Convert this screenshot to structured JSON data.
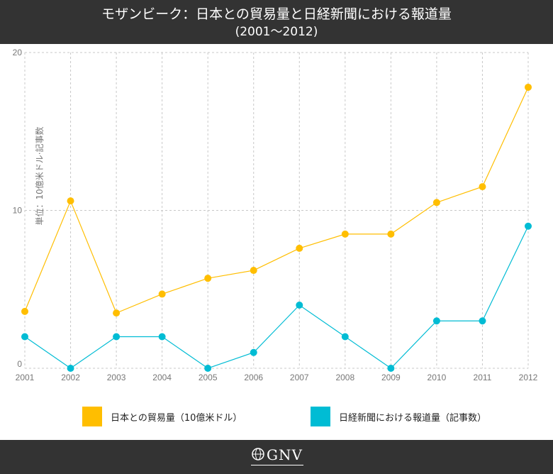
{
  "header": {
    "title_line1": "モザンビーク：日本との貿易量と日経新聞における報道量",
    "title_line2": "(2001～2012)"
  },
  "chart_data": {
    "type": "line",
    "categories": [
      "2001",
      "2002",
      "2003",
      "2004",
      "2005",
      "2006",
      "2007",
      "2008",
      "2009",
      "2010",
      "2011",
      "2012"
    ],
    "series": [
      {
        "name": "日本との貿易量（10億米ドル）",
        "color": "#FFBE00",
        "values": [
          3.6,
          10.6,
          3.5,
          4.7,
          5.7,
          6.2,
          7.6,
          8.5,
          8.5,
          10.5,
          11.5,
          17.8
        ]
      },
      {
        "name": "日経新聞における報道量（記事数）",
        "color": "#00BCD4",
        "values": [
          2,
          0,
          2,
          2,
          0,
          1,
          4,
          2,
          0,
          3,
          3,
          9
        ]
      }
    ],
    "yticks": [
      "0",
      "10",
      "20"
    ],
    "ylim": [
      0,
      20
    ],
    "ylabel": "単位：10億米ドル·記事数",
    "grid": true,
    "legend_position": "bottom"
  },
  "footer": {
    "logo_text": "GNV",
    "logo_icon": "globe-icon"
  }
}
